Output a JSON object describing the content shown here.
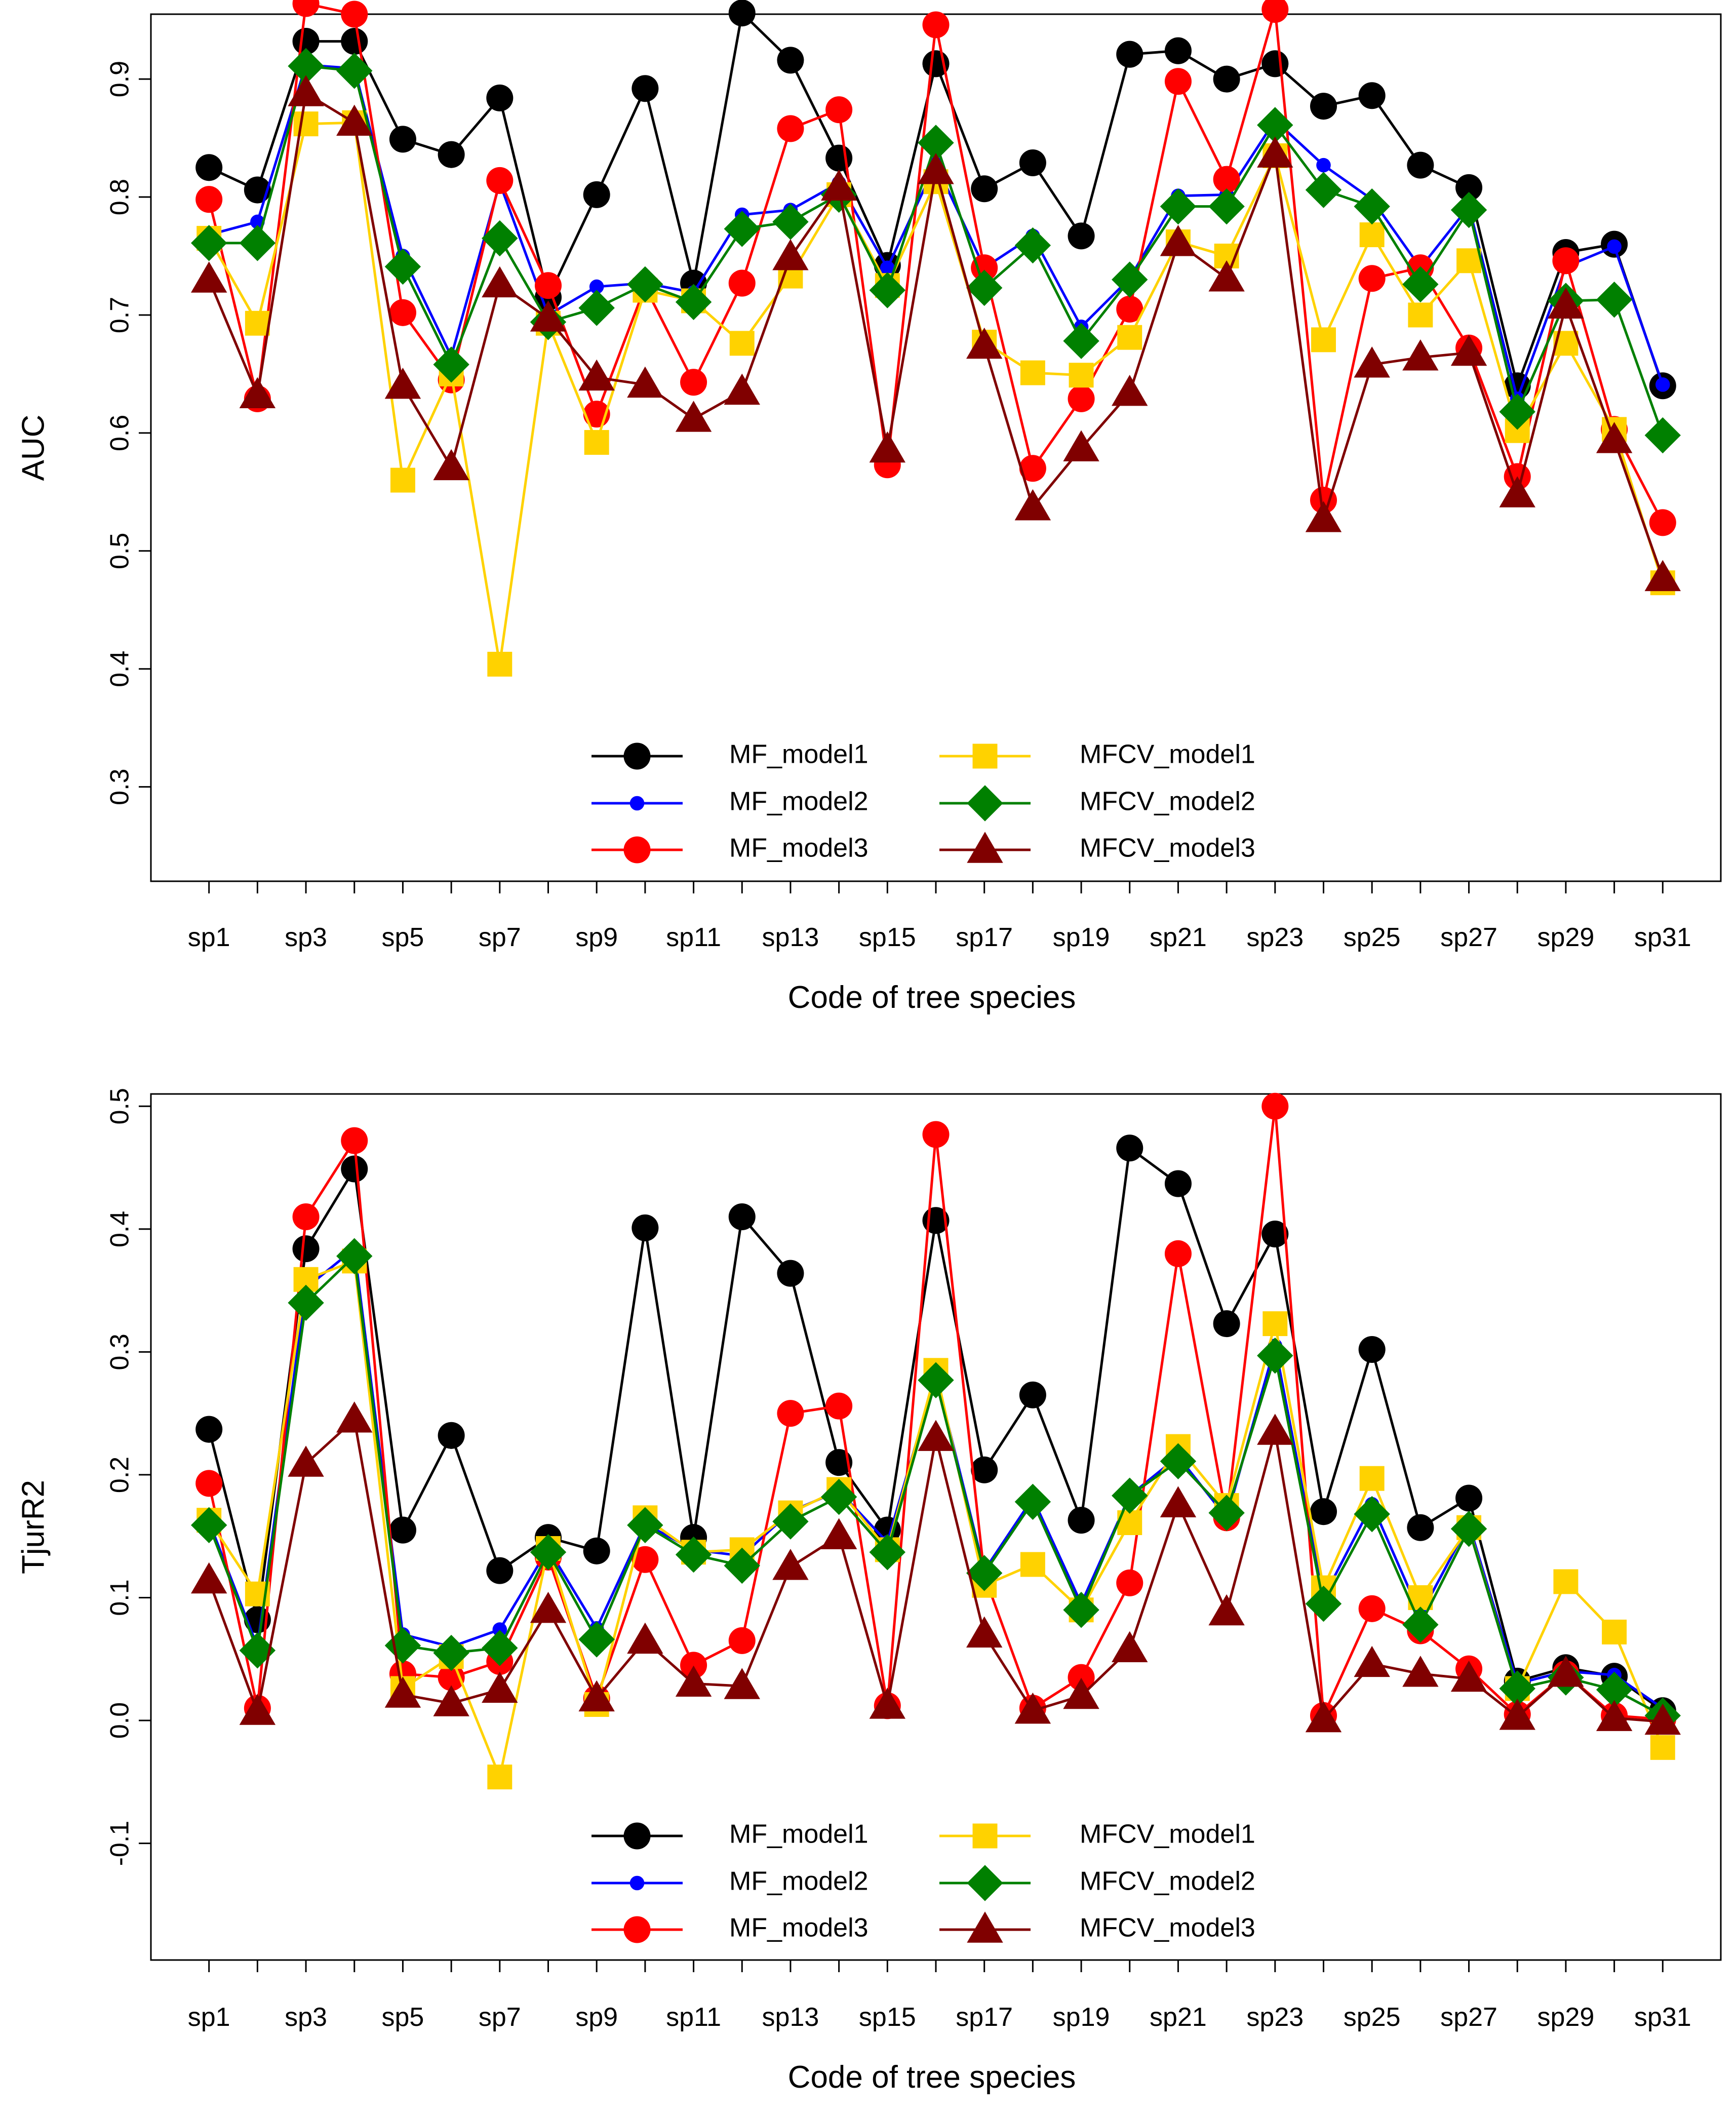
{
  "chart_data": [
    {
      "type": "line",
      "ylabel": "AUC",
      "xlabel": "Code of tree species",
      "ylim": [
        0.22,
        0.955
      ],
      "yticks": [
        0.3,
        0.4,
        0.5,
        0.6,
        0.7,
        0.8,
        0.9
      ],
      "ytick_labels": [
        "0.3",
        "0.4",
        "0.5",
        "0.6",
        "0.7",
        "0.8",
        "0.9"
      ],
      "xtick_labels": [
        "sp1",
        "sp3",
        "sp5",
        "sp7",
        "sp9",
        "sp11",
        "sp13",
        "sp15",
        "sp17",
        "sp19",
        "sp21",
        "sp23",
        "sp25",
        "sp27",
        "sp29",
        "sp31"
      ],
      "xtick_index": [
        1,
        3,
        5,
        7,
        9,
        11,
        13,
        15,
        17,
        19,
        21,
        23,
        25,
        27,
        29,
        31
      ],
      "legend_position": "bottom-center",
      "series": [
        {
          "name": "MF_model1",
          "color": "#000000",
          "marker": "circle",
          "values": [
            0.825,
            0.806,
            0.932,
            0.932,
            0.849,
            0.836,
            0.884,
            0.715,
            0.802,
            0.892,
            0.727,
            0.956,
            0.916,
            0.833,
            0.742,
            0.913,
            0.807,
            0.829,
            0.767,
            0.921,
            0.924,
            0.9,
            0.913,
            0.877,
            0.886,
            0.827,
            0.808,
            0.64,
            0.753,
            0.76,
            0.64
          ]
        },
        {
          "name": "MF_model2",
          "color": "#0000ff",
          "marker": "dot",
          "values": [
            0.768,
            0.779,
            0.912,
            0.909,
            0.75,
            0.665,
            0.812,
            0.7,
            0.724,
            0.727,
            0.719,
            0.785,
            0.789,
            0.812,
            0.74,
            0.828,
            0.74,
            0.767,
            0.69,
            0.731,
            0.801,
            0.802,
            0.865,
            0.827,
            0.798,
            0.74,
            0.792,
            0.629,
            0.741,
            0.758,
            0.641
          ]
        },
        {
          "name": "MF_model3",
          "color": "#ff0000",
          "marker": "circle",
          "values": [
            0.798,
            0.629,
            0.964,
            0.955,
            0.702,
            0.645,
            0.814,
            0.725,
            0.616,
            0.724,
            0.643,
            0.727,
            0.858,
            0.874,
            0.573,
            0.946,
            0.74,
            0.57,
            0.629,
            0.705,
            0.898,
            0.815,
            0.959,
            0.543,
            0.731,
            0.74,
            0.672,
            0.563,
            0.746,
            0.603,
            0.524
          ]
        },
        {
          "name": "MFCV_model1",
          "color": "#ffd200",
          "marker": "square",
          "values": [
            0.765,
            0.693,
            0.862,
            0.863,
            0.56,
            0.65,
            0.404,
            0.693,
            0.592,
            0.721,
            0.712,
            0.676,
            0.733,
            0.802,
            0.725,
            0.813,
            0.677,
            0.651,
            0.649,
            0.681,
            0.762,
            0.75,
            0.835,
            0.679,
            0.768,
            0.7,
            0.746,
            0.602,
            0.676,
            0.603,
            0.473
          ]
        },
        {
          "name": "MFCV_model2",
          "color": "#008000",
          "marker": "diamond",
          "values": [
            0.761,
            0.761,
            0.911,
            0.907,
            0.741,
            0.658,
            0.765,
            0.694,
            0.706,
            0.726,
            0.711,
            0.773,
            0.779,
            0.802,
            0.721,
            0.846,
            0.723,
            0.759,
            0.678,
            0.73,
            0.792,
            0.792,
            0.861,
            0.806,
            0.792,
            0.726,
            0.789,
            0.618,
            0.712,
            0.713,
            0.598
          ]
        },
        {
          "name": "MFCV_model3",
          "color": "#800000",
          "marker": "triangle",
          "values": [
            0.73,
            0.632,
            0.888,
            0.863,
            0.64,
            0.571,
            0.726,
            0.697,
            0.647,
            0.641,
            0.612,
            0.635,
            0.749,
            0.808,
            0.586,
            0.822,
            0.674,
            0.537,
            0.587,
            0.634,
            0.761,
            0.731,
            0.836,
            0.527,
            0.658,
            0.664,
            0.668,
            0.548,
            0.708,
            0.594,
            0.477
          ]
        }
      ]
    },
    {
      "type": "line",
      "ylabel": "TjurR2",
      "xlabel": "Code of tree species",
      "ylim": [
        -0.195,
        0.51
      ],
      "yticks": [
        -0.1,
        0.0,
        0.1,
        0.2,
        0.3,
        0.4,
        0.5
      ],
      "ytick_labels": [
        "-0.1",
        "0.0",
        "0.1",
        "0.2",
        "0.3",
        "0.4",
        "0.5"
      ],
      "xtick_labels": [
        "sp1",
        "sp3",
        "sp5",
        "sp7",
        "sp9",
        "sp11",
        "sp13",
        "sp15",
        "sp17",
        "sp19",
        "sp21",
        "sp23",
        "sp25",
        "sp27",
        "sp29",
        "sp31"
      ],
      "xtick_index": [
        1,
        3,
        5,
        7,
        9,
        11,
        13,
        15,
        17,
        19,
        21,
        23,
        25,
        27,
        29,
        31
      ],
      "legend_position": "bottom-center",
      "series": [
        {
          "name": "MF_model1",
          "color": "#000000",
          "marker": "circle",
          "values": [
            0.237,
            0.082,
            0.384,
            0.449,
            0.155,
            0.232,
            0.122,
            0.149,
            0.138,
            0.401,
            0.149,
            0.41,
            0.364,
            0.21,
            0.155,
            0.407,
            0.204,
            0.265,
            0.163,
            0.466,
            0.437,
            0.323,
            0.396,
            0.17,
            0.302,
            0.157,
            0.181,
            0.032,
            0.043,
            0.036,
            0.008
          ]
        },
        {
          "name": "MF_model2",
          "color": "#0000ff",
          "marker": "dot",
          "values": [
            0.162,
            0.06,
            0.352,
            0.384,
            0.07,
            0.06,
            0.074,
            0.14,
            0.075,
            0.16,
            0.139,
            0.134,
            0.17,
            0.187,
            0.145,
            0.281,
            0.122,
            0.181,
            0.095,
            0.183,
            0.215,
            0.165,
            0.305,
            0.1,
            0.176,
            0.086,
            0.16,
            0.03,
            0.04,
            0.037,
            0.01
          ]
        },
        {
          "name": "MF_model3",
          "color": "#ff0000",
          "marker": "circle",
          "values": [
            0.193,
            0.01,
            0.41,
            0.472,
            0.038,
            0.035,
            0.048,
            0.133,
            0.018,
            0.131,
            0.045,
            0.065,
            0.25,
            0.256,
            0.012,
            0.477,
            0.118,
            0.01,
            0.035,
            0.112,
            0.38,
            0.165,
            0.5,
            0.004,
            0.091,
            0.073,
            0.042,
            0.005,
            0.038,
            0.004,
            0.001
          ]
        },
        {
          "name": "MFCV_model1",
          "color": "#ffd200",
          "marker": "square",
          "values": [
            0.163,
            0.103,
            0.359,
            0.374,
            0.026,
            0.052,
            -0.046,
            0.14,
            0.013,
            0.165,
            0.137,
            0.139,
            0.169,
            0.188,
            0.139,
            0.285,
            0.11,
            0.127,
            0.09,
            0.161,
            0.223,
            0.175,
            0.323,
            0.108,
            0.197,
            0.1,
            0.157,
            0.026,
            0.113,
            0.072,
            -0.022
          ]
        },
        {
          "name": "MFCV_model2",
          "color": "#008000",
          "marker": "diamond",
          "values": [
            0.159,
            0.057,
            0.34,
            0.378,
            0.061,
            0.055,
            0.059,
            0.137,
            0.066,
            0.159,
            0.135,
            0.126,
            0.162,
            0.182,
            0.137,
            0.277,
            0.12,
            0.178,
            0.09,
            0.183,
            0.211,
            0.169,
            0.297,
            0.095,
            0.168,
            0.078,
            0.156,
            0.026,
            0.035,
            0.025,
            0.004
          ]
        },
        {
          "name": "MFCV_model3",
          "color": "#800000",
          "marker": "triangle",
          "values": [
            0.114,
            0.007,
            0.209,
            0.245,
            0.021,
            0.014,
            0.025,
            0.09,
            0.018,
            0.065,
            0.03,
            0.028,
            0.125,
            0.15,
            0.012,
            0.23,
            0.07,
            0.008,
            0.02,
            0.058,
            0.176,
            0.088,
            0.235,
            0.001,
            0.046,
            0.038,
            0.034,
            0.003,
            0.038,
            0.002,
            -0.001
          ]
        }
      ]
    }
  ]
}
